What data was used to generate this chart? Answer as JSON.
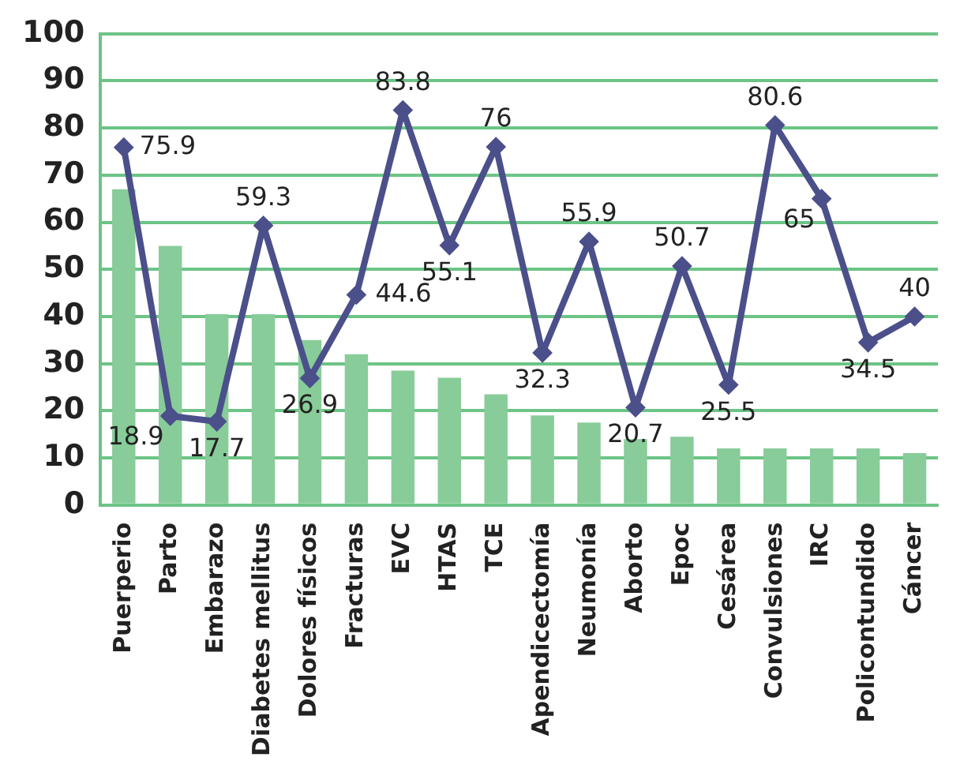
{
  "chart_data": {
    "type": "bar",
    "categories": [
      "Puerperio",
      "Parto",
      "Embarazo",
      "Diabetes mellitus",
      "Dolores físicos",
      "Fracturas",
      "EVC",
      "HTAS",
      "TCE",
      "Apendicectomía",
      "Neumonía",
      "Aborto",
      "Epoc",
      "Cesárea",
      "Convulsiones",
      "IRC",
      "Policontundido",
      "Cáncer"
    ],
    "series": [
      {
        "color": "#88cc99",
        "values": [
          67,
          55,
          40.5,
          40.5,
          35,
          32,
          28.5,
          27,
          23.5,
          19,
          17.5,
          14,
          14.5,
          12,
          12,
          12,
          12,
          11
        ]
      },
      {
        "type": "line",
        "color": "#4b4f8a",
        "values": [
          75.9,
          18.9,
          17.7,
          59.3,
          26.9,
          44.6,
          83.8,
          55.1,
          76,
          32.3,
          55.9,
          20.7,
          50.7,
          25.5,
          80.6,
          65,
          34.5,
          40
        ],
        "data_labels": true,
        "marker": "diamond"
      }
    ],
    "ylim": [
      0,
      100
    ],
    "yticks": [
      0,
      10,
      20,
      30,
      40,
      50,
      60,
      70,
      80,
      90,
      100
    ],
    "grid": "y",
    "legend": false
  }
}
